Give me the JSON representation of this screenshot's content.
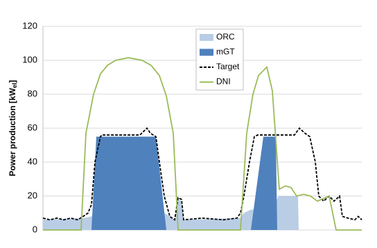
{
  "chart_data": {
    "type": "area-line",
    "ylabel": {
      "main": "Power production [kW",
      "sub": "el",
      "end": "]"
    },
    "xlim": [
      0,
      92
    ],
    "ylim": [
      0,
      120
    ],
    "yticks": [
      0,
      20,
      40,
      60,
      80,
      100,
      120
    ],
    "grid": true,
    "legend": "top-center",
    "series": [
      {
        "name": "ORC",
        "color": "#b9cde5",
        "kind": "area",
        "x": [
          0,
          11.6,
          14,
          15,
          35,
          36.6,
          38,
          39,
          40,
          40.6,
          57,
          58,
          60,
          66,
          68,
          73.6,
          73.8,
          92
        ],
        "values": [
          6,
          7,
          8,
          10,
          10,
          8,
          6,
          18,
          17,
          6,
          7,
          10,
          12,
          12,
          20,
          20,
          0,
          0
        ]
      },
      {
        "name": "mGT",
        "color": "#4f81bd",
        "kind": "area",
        "x": [
          0,
          14,
          15.4,
          32.6,
          35.6,
          60,
          63.6,
          67.2,
          67.6,
          92
        ],
        "values": [
          0,
          0,
          55,
          55,
          0,
          0,
          55,
          55,
          0,
          0
        ]
      },
      {
        "name": "Target",
        "color": "#000000",
        "kind": "line",
        "dashed": true,
        "x": [
          0,
          2,
          4,
          6,
          8,
          10,
          11.6,
          13,
          14,
          15,
          16.6,
          17,
          28,
          29,
          30,
          31,
          32.6,
          33.6,
          35,
          36.6,
          38,
          39,
          40,
          40.6,
          46,
          52,
          56,
          57,
          58,
          59.6,
          61,
          62,
          72.6,
          74,
          75.6,
          77,
          78.6,
          79.6,
          81,
          82.6,
          84,
          85.6,
          86.4,
          88,
          90,
          91,
          92
        ],
        "values": [
          7,
          6,
          7,
          6,
          7,
          6,
          8,
          10,
          15,
          40,
          55,
          56,
          56,
          58,
          60,
          57,
          55,
          40,
          20,
          8,
          6,
          19,
          18,
          6,
          7,
          6,
          7,
          10,
          20,
          40,
          55,
          56,
          56,
          60,
          57,
          55,
          40,
          20,
          17,
          20,
          17,
          20,
          8,
          7,
          6,
          8,
          6
        ]
      },
      {
        "name": "DNI",
        "color": "#9bbb59",
        "kind": "line",
        "x": [
          0,
          11,
          12.4,
          14.6,
          16.6,
          18.6,
          21,
          24.6,
          28.6,
          31.2,
          33.6,
          35.6,
          37.6,
          39,
          57,
          58.8,
          60.6,
          62.2,
          64.6,
          66.2,
          68.2,
          70,
          71.6,
          73.2,
          75.2,
          77.2,
          79.2,
          82.6,
          84.6,
          92
        ],
        "values": [
          0,
          0,
          57,
          80,
          92,
          97,
          100,
          101.5,
          100,
          97,
          91,
          79,
          57,
          0,
          0,
          57,
          80,
          91,
          96,
          82,
          24,
          26,
          25,
          20,
          21,
          20,
          17,
          20,
          0,
          0
        ]
      }
    ]
  }
}
